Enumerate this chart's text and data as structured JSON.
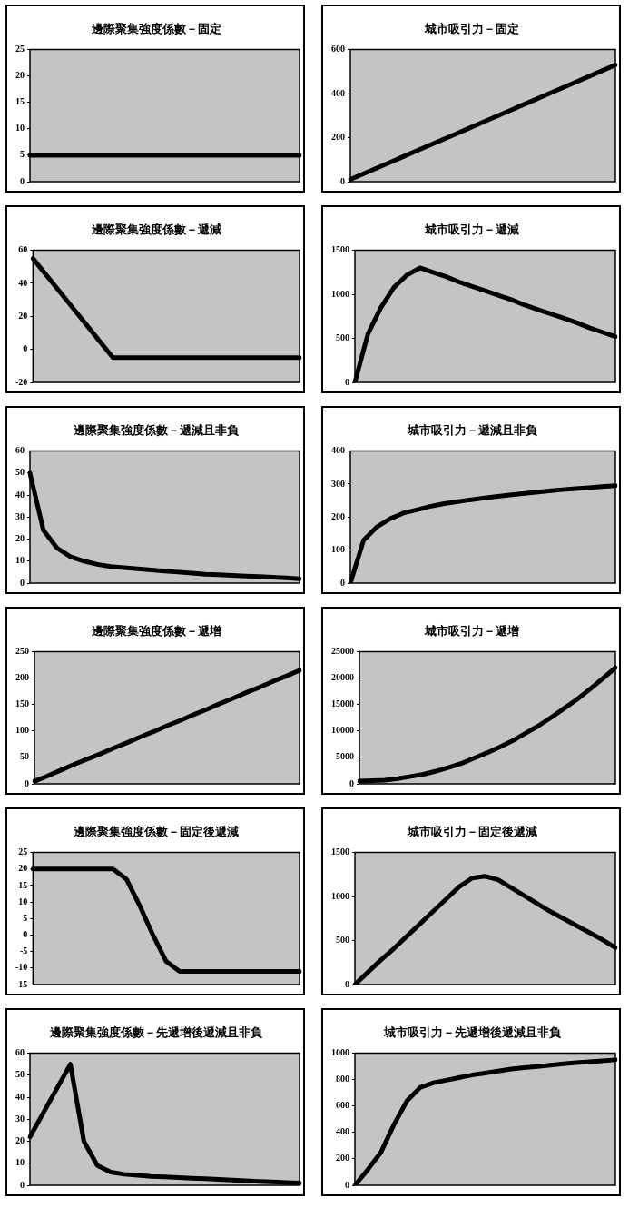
{
  "chart_data": [
    {
      "type": "line",
      "title": "邊際聚集強度係數－固定",
      "categories": [
        null,
        null,
        null,
        null,
        null,
        null,
        null,
        null,
        null,
        null,
        null,
        null,
        null,
        null,
        null,
        null,
        null,
        null,
        null,
        null,
        null
      ],
      "values": [
        5,
        5,
        5,
        5,
        5,
        5,
        5,
        5,
        5,
        5,
        5,
        5,
        5,
        5,
        5,
        5,
        5,
        5,
        5,
        5,
        5
      ],
      "color": "#000000",
      "ylim": [
        0,
        25
      ],
      "yticks": [
        0,
        5,
        10,
        15,
        20,
        25
      ],
      "tick_labels": "y",
      "marker": "none"
    },
    {
      "type": "line",
      "title": "城市吸引力－固定",
      "categories": [
        null,
        null,
        null,
        null,
        null,
        null,
        null,
        null,
        null,
        null,
        null,
        null,
        null,
        null,
        null,
        null,
        null,
        null,
        null,
        null,
        null
      ],
      "values": [
        10,
        36,
        62,
        88,
        114,
        140,
        166,
        192,
        218,
        244,
        270,
        296,
        322,
        348,
        374,
        400,
        426,
        452,
        478,
        504,
        530
      ],
      "color": "#000000",
      "ylim": [
        0,
        600
      ],
      "yticks": [
        0,
        200,
        400,
        600
      ],
      "tick_labels": "y",
      "marker": "none"
    },
    {
      "type": "line",
      "title": "邊際聚集強度係數－遞減",
      "categories": [
        null,
        null,
        null,
        null,
        null,
        null,
        null,
        null,
        null,
        null,
        null,
        null,
        null,
        null,
        null,
        null,
        null,
        null,
        null,
        null,
        null
      ],
      "values": [
        55,
        45,
        35,
        25,
        15,
        5,
        -5,
        -5,
        -5,
        -5,
        -5,
        -5,
        -5,
        -5,
        -5,
        -5,
        -5,
        -5,
        -5,
        -5,
        -5
      ],
      "color": "#000000",
      "ylim": [
        -20,
        60
      ],
      "yticks": [
        -20,
        0,
        20,
        40,
        60
      ],
      "tick_labels": "y",
      "marker": "none"
    },
    {
      "type": "line",
      "title": "城市吸引力－遞減",
      "categories": [
        null,
        null,
        null,
        null,
        null,
        null,
        null,
        null,
        null,
        null,
        null,
        null,
        null,
        null,
        null,
        null,
        null,
        null,
        null,
        null,
        null
      ],
      "values": [
        0,
        550,
        850,
        1080,
        1220,
        1300,
        1250,
        1200,
        1140,
        1090,
        1040,
        990,
        940,
        880,
        830,
        780,
        730,
        680,
        620,
        570,
        520
      ],
      "color": "#000000",
      "ylim": [
        0,
        1500
      ],
      "yticks": [
        0,
        500,
        1000,
        1500
      ],
      "tick_labels": "y",
      "marker": "none"
    },
    {
      "type": "line",
      "title": "邊際聚集強度係數－遞減且非負",
      "categories": [
        null,
        null,
        null,
        null,
        null,
        null,
        null,
        null,
        null,
        null,
        null,
        null,
        null,
        null,
        null,
        null,
        null,
        null,
        null,
        null,
        null
      ],
      "values": [
        50,
        24,
        16,
        12,
        10,
        8.5,
        7.5,
        7,
        6.5,
        6,
        5.5,
        5,
        4.5,
        4,
        3.8,
        3.5,
        3.2,
        3,
        2.7,
        2.4,
        2
      ],
      "color": "#000000",
      "ylim": [
        0,
        60
      ],
      "yticks": [
        0,
        10,
        20,
        30,
        40,
        50,
        60
      ],
      "tick_labels": "y",
      "marker": "none"
    },
    {
      "type": "line",
      "title": "城市吸引力－遞減且非負",
      "categories": [
        null,
        null,
        null,
        null,
        null,
        null,
        null,
        null,
        null,
        null,
        null,
        null,
        null,
        null,
        null,
        null,
        null,
        null,
        null,
        null,
        null
      ],
      "values": [
        0,
        130,
        170,
        195,
        212,
        222,
        232,
        240,
        246,
        252,
        257,
        262,
        267,
        271,
        275,
        279,
        283,
        286,
        289,
        292,
        295
      ],
      "color": "#000000",
      "ylim": [
        0,
        400
      ],
      "yticks": [
        0,
        100,
        200,
        300,
        400
      ],
      "tick_labels": "y",
      "marker": "none"
    },
    {
      "type": "line",
      "title": "邊際聚集強度係數－遞增",
      "categories": [
        null,
        null,
        null,
        null,
        null,
        null,
        null,
        null,
        null,
        null,
        null,
        null,
        null,
        null,
        null,
        null,
        null,
        null,
        null,
        null,
        null
      ],
      "values": [
        5,
        15,
        26,
        37,
        47,
        57,
        68,
        78,
        89,
        99,
        110,
        120,
        131,
        141,
        152,
        162,
        173,
        183,
        194,
        204,
        215
      ],
      "color": "#000000",
      "ylim": [
        0,
        250
      ],
      "yticks": [
        0,
        50,
        100,
        150,
        200,
        250
      ],
      "tick_labels": "y",
      "marker": "none"
    },
    {
      "type": "line",
      "title": "城市吸引力－遞增",
      "categories": [
        null,
        null,
        null,
        null,
        null,
        null,
        null,
        null,
        null,
        null,
        null,
        null,
        null,
        null,
        null,
        null,
        null,
        null,
        null,
        null,
        null
      ],
      "values": [
        500,
        600,
        700,
        1000,
        1400,
        1800,
        2400,
        3100,
        3900,
        4900,
        5900,
        7000,
        8200,
        9600,
        11000,
        12600,
        14300,
        16000,
        17900,
        19900,
        22000
      ],
      "color": "#000000",
      "ylim": [
        0,
        25000
      ],
      "yticks": [
        0,
        5000,
        10000,
        15000,
        20000,
        25000
      ],
      "tick_labels": "y",
      "marker": "none"
    },
    {
      "type": "line",
      "title": "邊際聚集強度係數－固定後遞減",
      "categories": [
        null,
        null,
        null,
        null,
        null,
        null,
        null,
        null,
        null,
        null,
        null,
        null,
        null,
        null,
        null,
        null,
        null,
        null,
        null,
        null,
        null
      ],
      "values": [
        20,
        20,
        20,
        20,
        20,
        20,
        20,
        17,
        9,
        0,
        -8,
        -11,
        -11,
        -11,
        -11,
        -11,
        -11,
        -11,
        -11,
        -11,
        -11
      ],
      "color": "#000000",
      "ylim": [
        -15,
        25
      ],
      "yticks": [
        -15,
        -10,
        -5,
        0,
        5,
        10,
        15,
        20,
        25
      ],
      "tick_labels": "y",
      "marker": "none"
    },
    {
      "type": "line",
      "title": "城市吸引力－固定後遞減",
      "categories": [
        null,
        null,
        null,
        null,
        null,
        null,
        null,
        null,
        null,
        null,
        null,
        null,
        null,
        null,
        null,
        null,
        null,
        null,
        null,
        null,
        null
      ],
      "values": [
        0,
        140,
        280,
        410,
        550,
        690,
        830,
        970,
        1110,
        1210,
        1230,
        1190,
        1100,
        1010,
        920,
        830,
        750,
        670,
        590,
        510,
        420
      ],
      "color": "#000000",
      "ylim": [
        0,
        1500
      ],
      "yticks": [
        0,
        500,
        1000,
        1500
      ],
      "tick_labels": "y",
      "marker": "none"
    },
    {
      "type": "line",
      "title": "邊際聚集強度係數－先遞增後遞減且非負",
      "categories": [
        null,
        null,
        null,
        null,
        null,
        null,
        null,
        null,
        null,
        null,
        null,
        null,
        null,
        null,
        null,
        null,
        null,
        null,
        null,
        null,
        null
      ],
      "values": [
        22,
        33,
        44,
        55,
        20,
        9,
        6,
        5,
        4.5,
        4,
        3.8,
        3.5,
        3.2,
        3,
        2.7,
        2.4,
        2.1,
        1.8,
        1.5,
        1.2,
        1
      ],
      "color": "#000000",
      "ylim": [
        0,
        60
      ],
      "yticks": [
        0,
        10,
        20,
        30,
        40,
        50,
        60
      ],
      "tick_labels": "y",
      "marker": "none"
    },
    {
      "type": "line",
      "title": "城市吸引力－先遞增後遞減且非負",
      "categories": [
        null,
        null,
        null,
        null,
        null,
        null,
        null,
        null,
        null,
        null,
        null,
        null,
        null,
        null,
        null,
        null,
        null,
        null,
        null,
        null,
        null
      ],
      "values": [
        0,
        120,
        250,
        460,
        640,
        740,
        775,
        795,
        815,
        835,
        850,
        865,
        880,
        890,
        900,
        910,
        920,
        928,
        935,
        942,
        950
      ],
      "color": "#000000",
      "ylim": [
        0,
        1000
      ],
      "yticks": [
        0,
        200,
        400,
        600,
        800,
        1000
      ],
      "tick_labels": "y",
      "marker": "none"
    }
  ]
}
